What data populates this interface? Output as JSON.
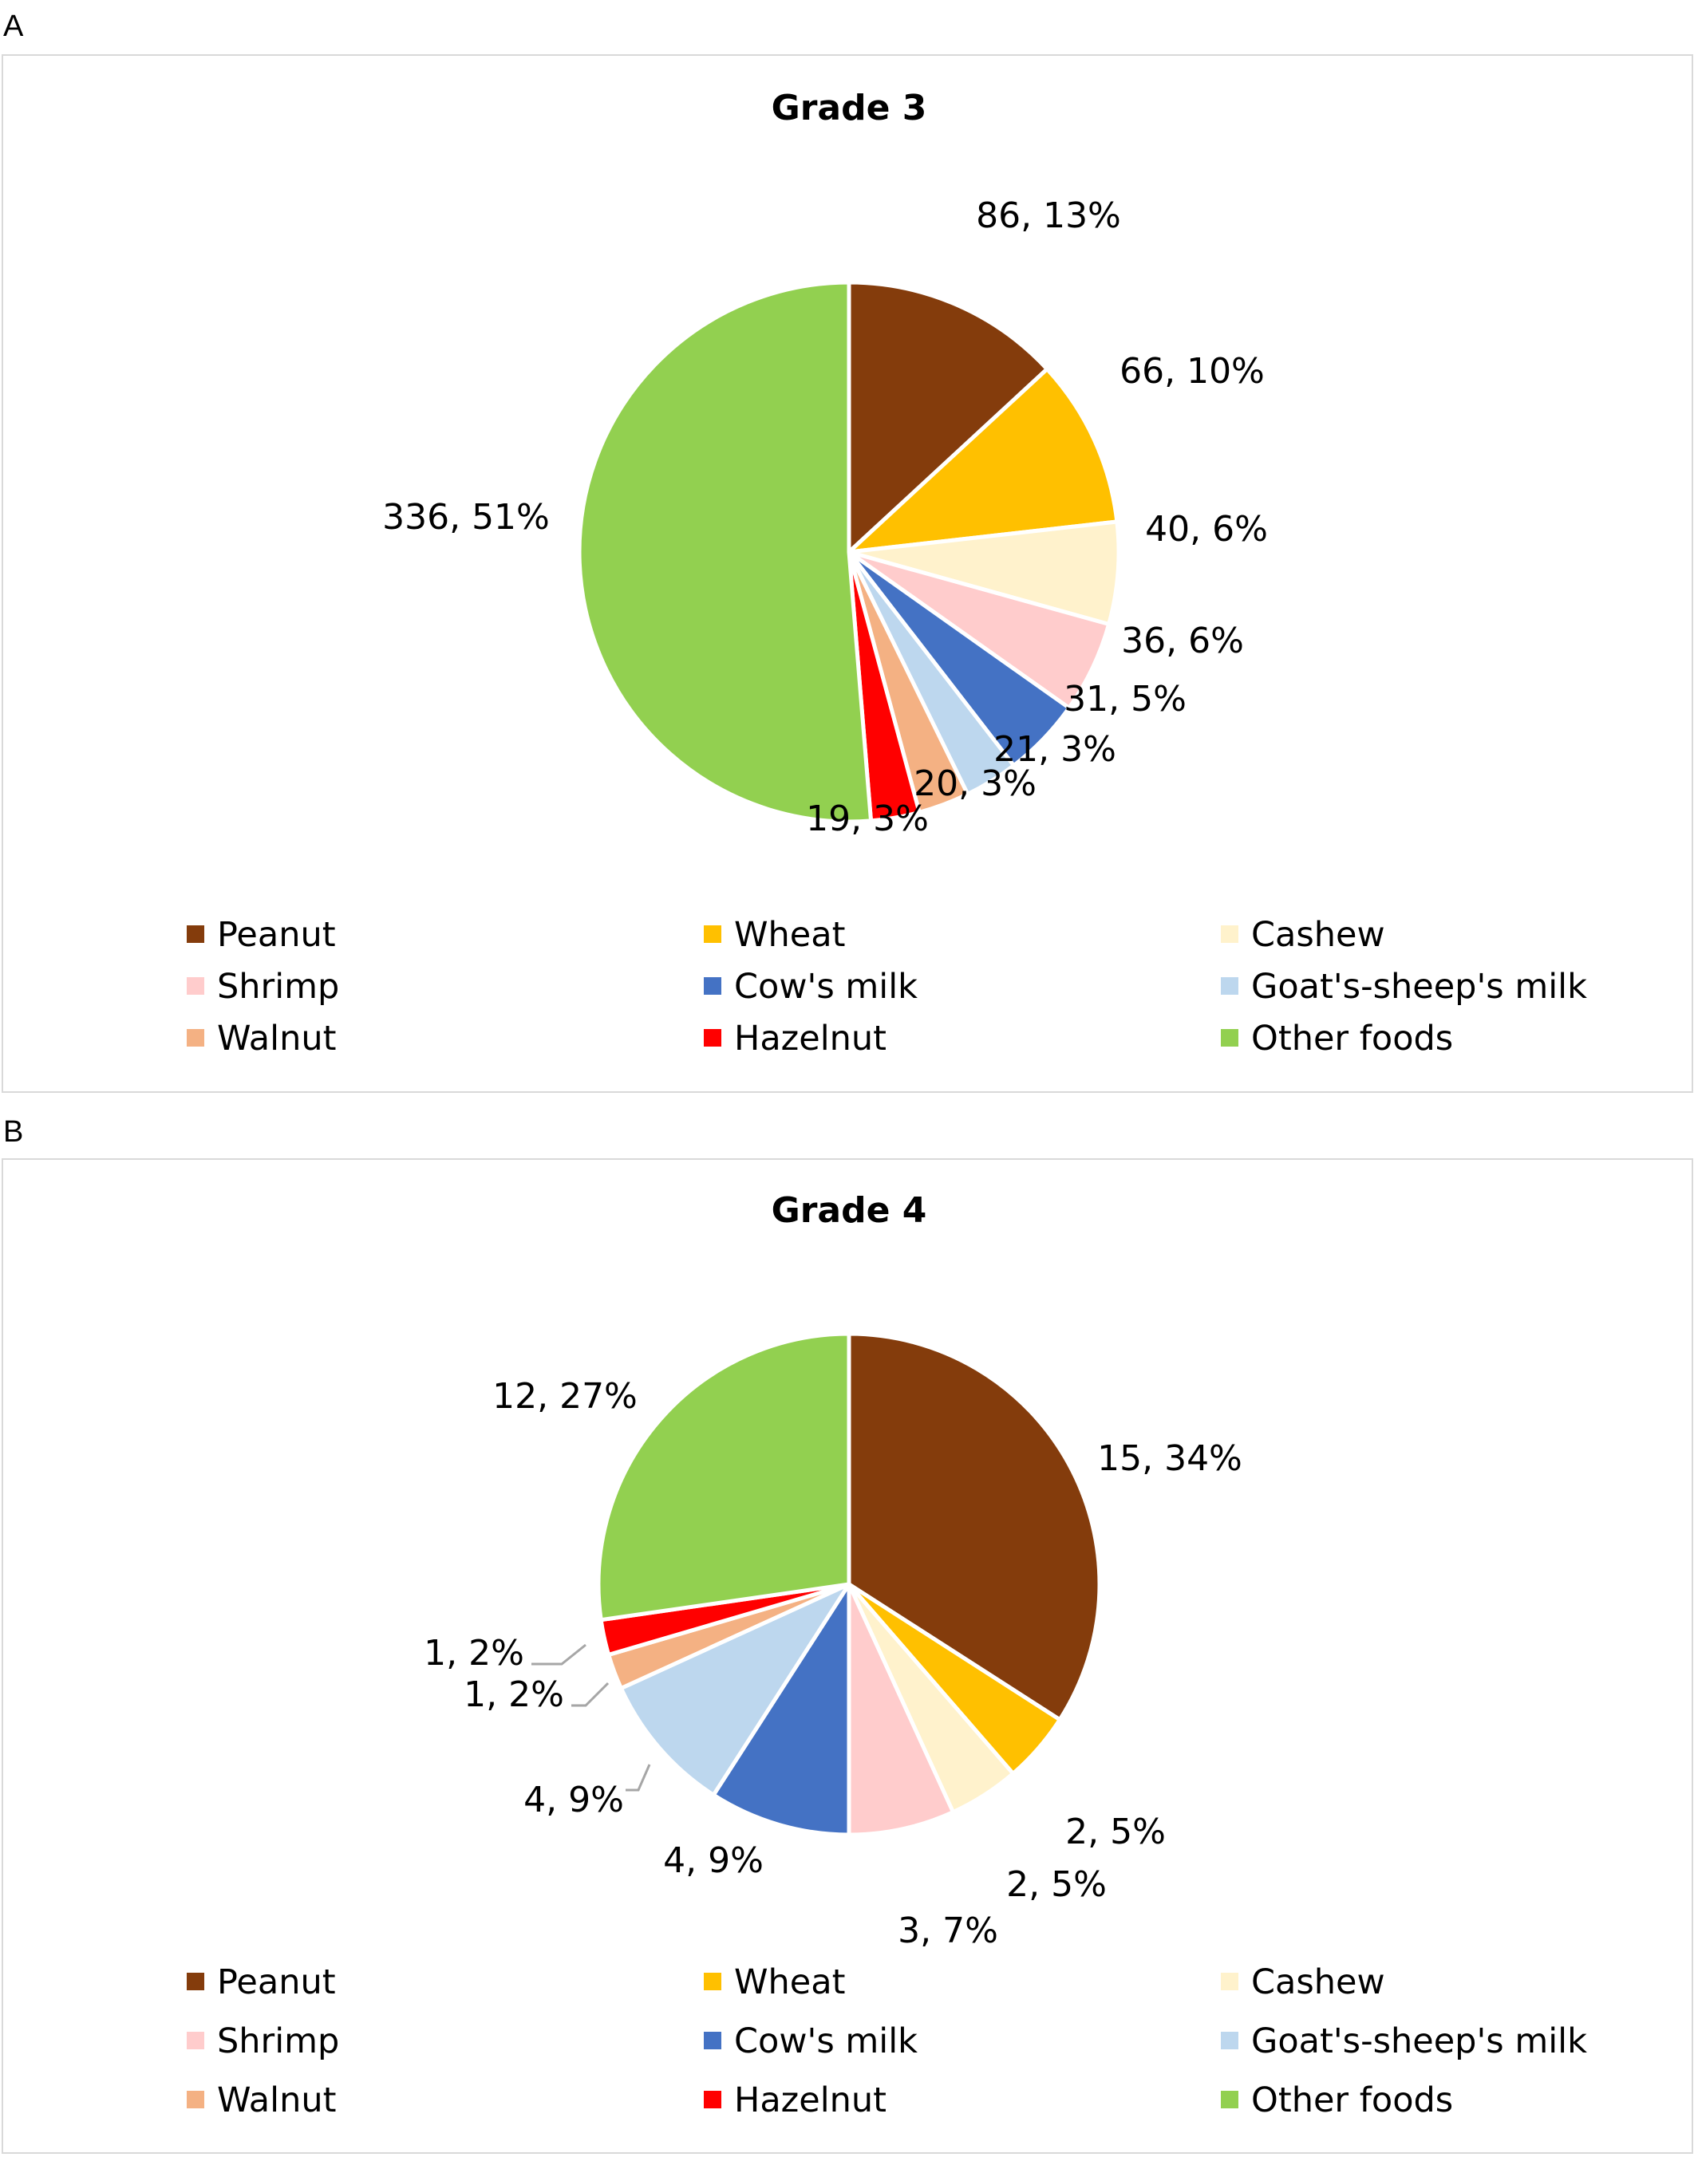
{
  "panels": [
    {
      "letter": "A"
    },
    {
      "letter": "B"
    }
  ],
  "chart_data": [
    {
      "type": "pie",
      "title": "Grade 3",
      "categories": [
        "Peanut",
        "Wheat",
        "Cashew",
        "Shrimp",
        "Cow's milk",
        "Goat's-sheep's milk",
        "Walnut",
        "Hazelnut",
        "Other foods"
      ],
      "values": [
        86,
        66,
        40,
        36,
        31,
        21,
        20,
        19,
        336
      ],
      "data_labels": [
        "86, 13%",
        "66, 10%",
        "40, 6%",
        "36, 6%",
        "31, 5%",
        "21, 3%",
        "20, 3%",
        "19, 3%",
        "336, 51%"
      ],
      "colors": [
        "#843c0c",
        "#ffc000",
        "#fff2cc",
        "#ffcccc",
        "#4472c4",
        "#bdd7ee",
        "#f4b183",
        "#ff0000",
        "#92d050"
      ],
      "legend": "bottom"
    },
    {
      "type": "pie",
      "title": "Grade 4",
      "categories": [
        "Peanut",
        "Wheat",
        "Cashew",
        "Shrimp",
        "Cow's milk",
        "Goat's-sheep's milk",
        "Walnut",
        "Hazelnut",
        "Other foods"
      ],
      "values": [
        15,
        2,
        2,
        3,
        4,
        4,
        1,
        1,
        12
      ],
      "data_labels": [
        "15, 34%",
        "2, 5%",
        "2, 5%",
        "3, 7%",
        "4, 9%",
        "4, 9%",
        "1, 2%",
        "1, 2%",
        "12, 27%"
      ],
      "colors": [
        "#843c0c",
        "#ffc000",
        "#fff2cc",
        "#ffcccc",
        "#4472c4",
        "#bdd7ee",
        "#f4b183",
        "#ff0000",
        "#92d050"
      ],
      "legend": "bottom"
    }
  ]
}
